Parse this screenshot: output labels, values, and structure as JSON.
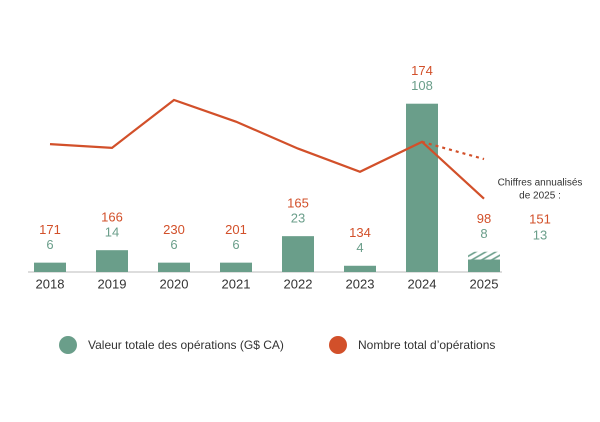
{
  "chart_data": {
    "type": "bar-line",
    "categories": [
      "2018",
      "2019",
      "2020",
      "2021",
      "2022",
      "2023",
      "2024",
      "2025"
    ],
    "series": [
      {
        "name": "Valeur totale des opérations (G$ CA)",
        "color": "#6a9e8a",
        "type": "bar",
        "values": [
          6,
          14,
          6,
          6,
          23,
          4,
          108,
          8
        ],
        "annualized_value": 13
      },
      {
        "name": "Nombre total d’opérations",
        "color": "#d2502a",
        "type": "line",
        "axis": "y2",
        "values": [
          171,
          166,
          230,
          201,
          165,
          134,
          174,
          98
        ],
        "annualized_value": 151
      }
    ],
    "annotation": [
      "Chiffres annualisés",
      "de 2025 :"
    ],
    "ylim": [
      0,
      120
    ],
    "y2lim": [
      0,
      250
    ],
    "grid": false
  }
}
